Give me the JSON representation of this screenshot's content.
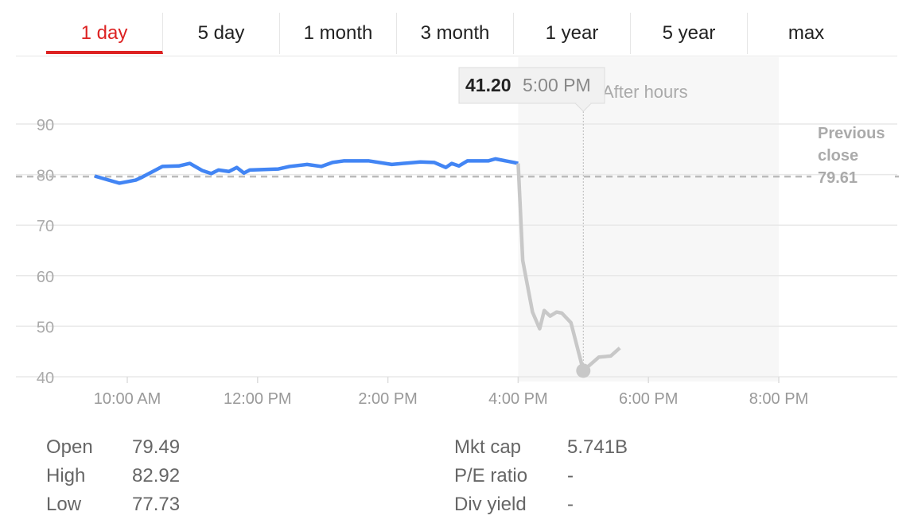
{
  "tabs": [
    {
      "label": "1 day",
      "active": true
    },
    {
      "label": "5 day"
    },
    {
      "label": "1 month"
    },
    {
      "label": "3 month"
    },
    {
      "label": "1 year"
    },
    {
      "label": "5 year"
    },
    {
      "label": "max"
    }
  ],
  "chart_data": {
    "type": "line",
    "yticks": [
      40,
      50,
      60,
      70,
      80,
      90
    ],
    "ylim": [
      40,
      90
    ],
    "xticks": [
      {
        "t": 10,
        "label": "10:00 AM"
      },
      {
        "t": 12,
        "label": "12:00 PM"
      },
      {
        "t": 14,
        "label": "2:00 PM"
      },
      {
        "t": 16,
        "label": "4:00 PM"
      },
      {
        "t": 18,
        "label": "6:00 PM"
      },
      {
        "t": 20,
        "label": "8:00 PM"
      }
    ],
    "x_unit": "hour of day",
    "grid": true,
    "after_hours_label": "After hours",
    "after_hours_range": [
      16,
      20
    ],
    "previous_close": {
      "label_line1": "Previous",
      "label_line2": "close",
      "value": "79.61"
    },
    "tooltip": {
      "price": "41.20",
      "time": "5:00 PM",
      "t": 17
    },
    "colors": {
      "regular": "#4285f4",
      "after_hours": "#c8c8c8",
      "accent": "#dd2222"
    },
    "series": [
      {
        "session": "regular",
        "x": [
          9.5,
          9.88,
          10.13,
          10.23,
          10.54,
          10.79,
          10.96,
          11.15,
          11.29,
          11.4,
          11.56,
          11.68,
          11.79,
          11.88,
          12.32,
          12.49,
          12.76,
          12.98,
          13.15,
          13.32,
          13.71,
          14.06,
          14.5,
          14.71,
          14.89,
          14.98,
          15.09,
          15.22,
          15.54,
          15.65,
          15.93,
          16.0
        ],
        "y": [
          79.7,
          78.3,
          78.9,
          79.5,
          81.6,
          81.7,
          82.2,
          80.8,
          80.2,
          80.9,
          80.6,
          81.4,
          80.3,
          80.9,
          81.1,
          81.6,
          82.0,
          81.6,
          82.4,
          82.7,
          82.7,
          82.0,
          82.5,
          82.4,
          81.4,
          82.2,
          81.7,
          82.7,
          82.7,
          83.1,
          82.4,
          82.2
        ]
      },
      {
        "session": "after_hours",
        "x": [
          16.0,
          16.07,
          16.22,
          16.33,
          16.4,
          16.49,
          16.59,
          16.67,
          16.81,
          17.0,
          17.24,
          17.42,
          17.56
        ],
        "y": [
          82.2,
          63.0,
          52.8,
          49.5,
          53.1,
          52.0,
          52.8,
          52.6,
          50.7,
          41.2,
          43.9,
          44.1,
          45.7
        ]
      }
    ]
  },
  "stats": {
    "left": [
      {
        "label": "Open",
        "value": "79.49"
      },
      {
        "label": "High",
        "value": "82.92"
      },
      {
        "label": "Low",
        "value": "77.73"
      }
    ],
    "right": [
      {
        "label": "Mkt cap",
        "value": "5.741B"
      },
      {
        "label": "P/E ratio",
        "value": "-"
      },
      {
        "label": "Div yield",
        "value": "-"
      }
    ]
  }
}
